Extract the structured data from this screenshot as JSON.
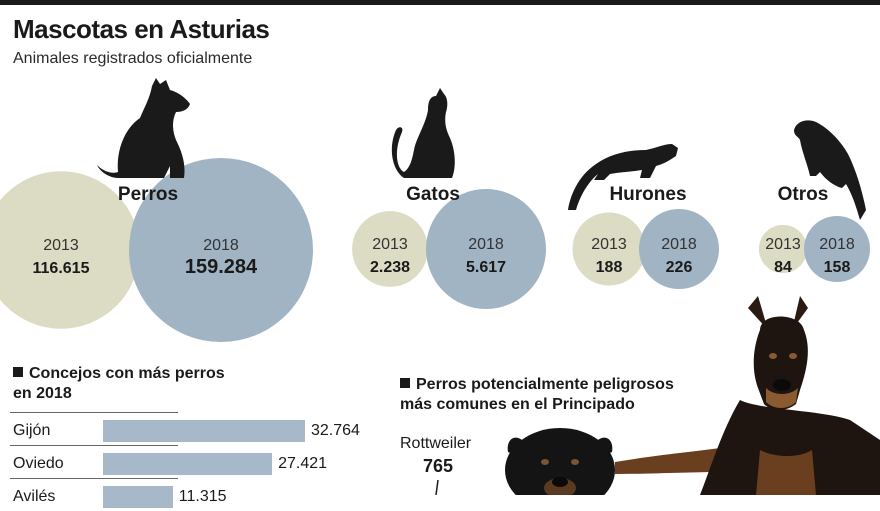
{
  "header": {
    "title": "Mascotas en Asturias",
    "subtitle": "Animales registrados oficialmente"
  },
  "colors": {
    "y2013": "#dcdcc4",
    "y2018": "#a1b4c4",
    "bar": "#a7b8c8",
    "ink": "#1a1a1a"
  },
  "chart_data": [
    {
      "type": "bubble",
      "categories": [
        "Perros",
        "Gatos",
        "Hurones",
        "Otros"
      ],
      "icons": [
        "dog-icon",
        "cat-icon",
        "ferret-icon",
        "parrot-icon"
      ],
      "series": [
        {
          "name": "2013",
          "values": [
            116615,
            2238,
            188,
            84
          ],
          "labels": [
            "116.615",
            "2.238",
            "188",
            "84"
          ]
        },
        {
          "name": "2018",
          "values": [
            159284,
            5617,
            226,
            158
          ],
          "labels": [
            "159.284",
            "5.617",
            "226",
            "158"
          ]
        }
      ]
    },
    {
      "type": "bar",
      "title": "Concejos con más perros en 2018",
      "title_lines": [
        "Concejos con más perros",
        "en 2018"
      ],
      "categories": [
        "Gijón",
        "Oviedo",
        "Avilés"
      ],
      "values": [
        32764,
        27421,
        11315
      ],
      "labels": [
        "32.764",
        "27.421",
        "11.315"
      ]
    },
    {
      "type": "table",
      "title": "Perros potencialmente peligrosos más comunes en el Principado",
      "title_lines": [
        "Perros potencialmente peligrosos",
        "más comunes en el Principado"
      ],
      "rows": [
        {
          "breed": "Rottweiler",
          "value": 765,
          "label": "765"
        }
      ]
    }
  ]
}
